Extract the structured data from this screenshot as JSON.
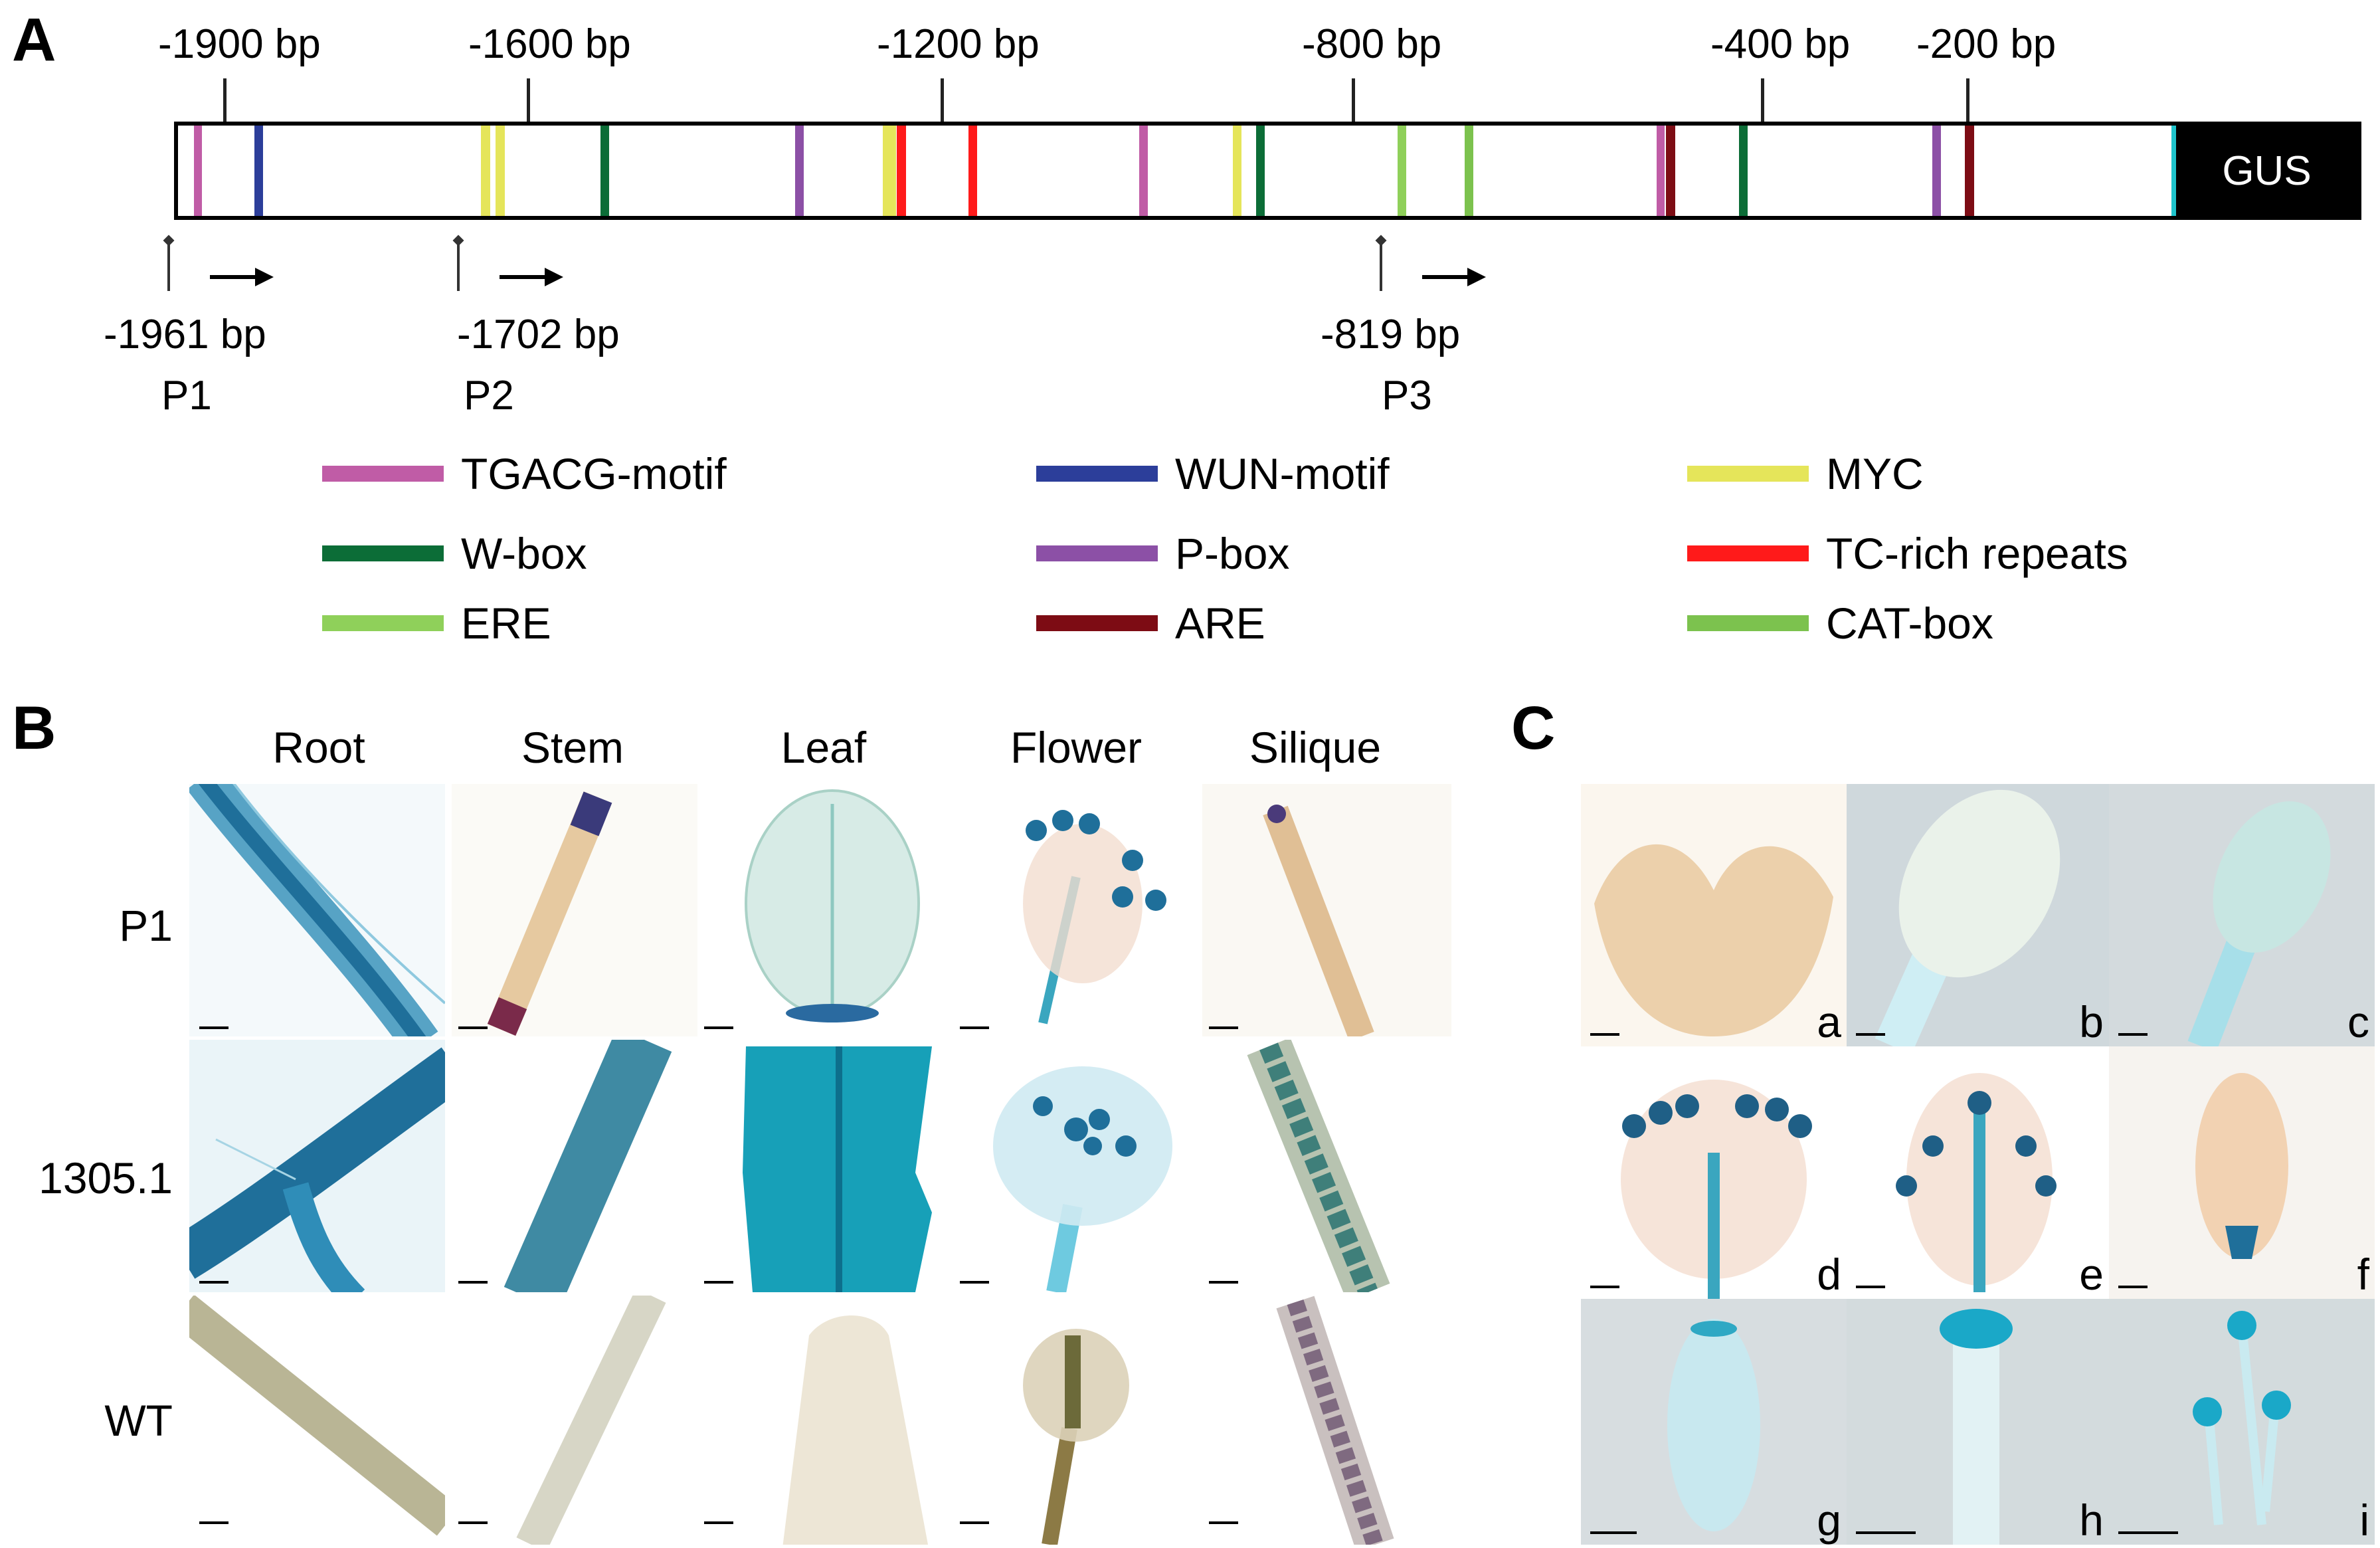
{
  "panelA": {
    "letter": "A",
    "coords": [
      {
        "text": "-1900 bp"
      },
      {
        "text": "-1600 bp"
      },
      {
        "text": "-1200 bp"
      },
      {
        "text": "-800 bp"
      },
      {
        "text": "-400 bp"
      },
      {
        "text": "-200 bp"
      }
    ],
    "gus_label": "GUS",
    "promoters": [
      {
        "pos": "-1961 bp",
        "name": "P1"
      },
      {
        "pos": "-1702 bp",
        "name": "P2"
      },
      {
        "pos": "-819 bp",
        "name": "P3"
      }
    ],
    "legend": [
      {
        "label": "TGACG-motif",
        "color": "#c05ca6"
      },
      {
        "label": "WUN-motif",
        "color": "#2c3e9a"
      },
      {
        "label": "MYC",
        "color": "#e5e55a"
      },
      {
        "label": "W-box",
        "color": "#0c6d37"
      },
      {
        "label": "P-box",
        "color": "#8c50a6"
      },
      {
        "label": "TC-rich repeats",
        "color": "#ff1a1a"
      },
      {
        "label": "ERE",
        "color": "#8fd05a"
      },
      {
        "label": "ARE",
        "color": "#7d0c14"
      },
      {
        "label": "CAT-box",
        "color": "#7cc24e"
      }
    ],
    "extra_colors": {
      "cyan": "#1fc4cc"
    }
  },
  "panelB": {
    "letter": "B",
    "columns": [
      "Root",
      "Stem",
      "Leaf",
      "Flower",
      "Silique"
    ],
    "rows": [
      "P1",
      "1305.1",
      "WT"
    ]
  },
  "panelC": {
    "letter": "C",
    "sublabels": [
      "a",
      "b",
      "c",
      "d",
      "e",
      "f",
      "g",
      "h",
      "i"
    ]
  }
}
